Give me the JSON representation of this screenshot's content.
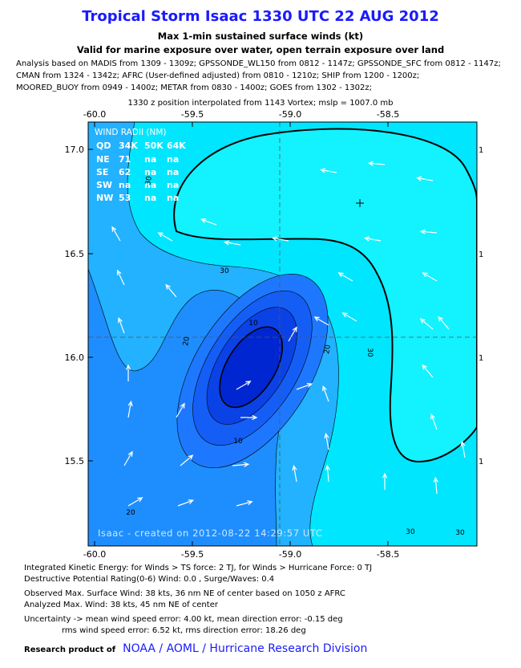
{
  "header": {
    "title": "Tropical Storm Isaac 1330 UTC 22 AUG 2012",
    "subtitle_lines": [
      "Max 1-min sustained surface winds (kt)",
      "Valid for marine exposure over water, open terrain exposure over land"
    ],
    "analysis_lines": [
      "Analysis based on MADIS from 1309 - 1309z; GPSSONDE_WL150 from 0812 - 1147z; GPSSONDE_SFC from 0812 - 1147z;",
      "CMAN from 1324 - 1342z; AFRC (User-defined adjusted) from 0810 - 1210z; SHIP from 1200 - 1200z;",
      "MOORED_BUOY from 0949 - 1400z; METAR from 0830 - 1400z; GOES from 1302 - 1302z;"
    ],
    "position_note": "1330 z position interpolated from 1143 Vortex; mslp = 1007.0 mb"
  },
  "map": {
    "lon_ticks": [
      "-60.0",
      "-59.5",
      "-59.0",
      "-58.5"
    ],
    "lat_ticks": [
      "17.0",
      "16.5",
      "16.0",
      "15.5"
    ],
    "right_ticks": [
      "1",
      "1",
      "1",
      "1"
    ],
    "wind_radii": {
      "title": "WIND RADII (NM)",
      "columns": [
        "QD",
        "34K",
        "50K",
        "64K"
      ],
      "rows": [
        [
          "NE",
          "71",
          "na",
          "na"
        ],
        [
          "SE",
          "62",
          "na",
          "na"
        ],
        [
          "SW",
          "na",
          "na",
          "na"
        ],
        [
          "NW",
          "53",
          "na",
          "na"
        ]
      ]
    },
    "contour_labels": [
      "30",
      "30",
      "20",
      "10",
      "10",
      "20",
      "30",
      "20",
      "30",
      "30"
    ],
    "credit": "Isaac - created on 2012-08-22 14:29:57 UTC"
  },
  "footer": {
    "lines": [
      "Integrated Kinetic Energy: for Winds > TS force: 2 TJ, for Winds > Hurricane Force: 0 TJ",
      "Destructive Potential Rating(0-6)  Wind: 0.0 , Surge/Waves: 0.4",
      "Observed Max. Surface Wind: 38 kts, 36 nm NE of center based on 1050 z AFRC",
      "Analyzed Max. Wind: 38 kts, 45 nm  NE of center",
      "Uncertainty -> mean wind speed error: 4.00 kt, mean direction error:  -0.15 deg",
      "rms wind speed error: 6.52 kt, rms direction error: 18.26 deg"
    ],
    "research_label": "Research product of",
    "organization": "NOAA / AOML / Hurricane Research Division"
  }
}
